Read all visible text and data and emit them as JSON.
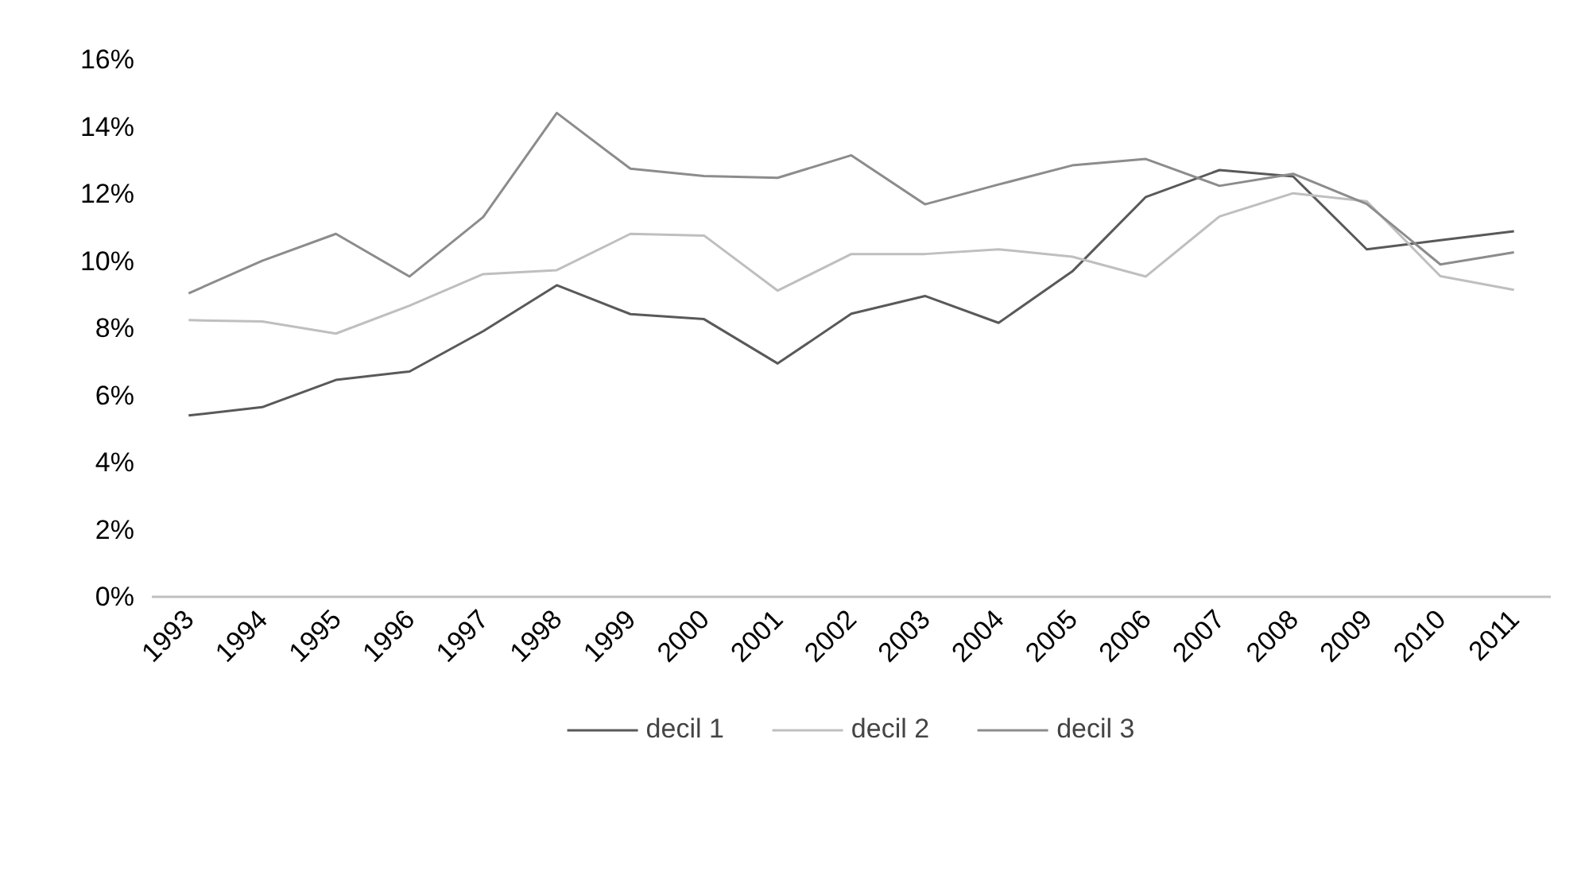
{
  "chart_data": {
    "type": "line",
    "categories": [
      "1993",
      "1994",
      "1995",
      "1996",
      "1997",
      "1998",
      "1999",
      "2000",
      "2001",
      "2002",
      "2003",
      "2004",
      "2005",
      "2006",
      "2007",
      "2008",
      "2009",
      "2010",
      "2011"
    ],
    "series": [
      {
        "name": "decil 1",
        "color": "#595959",
        "values": [
          5.4,
          5.65,
          6.46,
          6.71,
          7.91,
          9.28,
          8.42,
          8.27,
          6.95,
          8.43,
          8.96,
          8.16,
          9.69,
          11.91,
          12.71,
          12.52,
          10.35,
          10.62,
          10.89
        ]
      },
      {
        "name": "decil 2",
        "color": "#bfbfbf",
        "values": [
          8.24,
          8.2,
          7.84,
          8.67,
          9.61,
          9.73,
          10.81,
          10.76,
          9.12,
          10.21,
          10.21,
          10.35,
          10.13,
          9.54,
          11.33,
          12.02,
          11.78,
          9.55,
          9.14
        ]
      },
      {
        "name": "decil 3",
        "color": "#8c8c8c",
        "values": [
          9.04,
          10.01,
          10.81,
          9.54,
          11.31,
          14.41,
          12.75,
          12.53,
          12.48,
          13.15,
          11.69,
          12.28,
          12.85,
          13.04,
          12.24,
          12.6,
          11.7,
          9.9,
          10.26
        ]
      }
    ],
    "ylim": [
      0,
      16
    ],
    "yticks": [
      {
        "value": 0,
        "label": "0%"
      },
      {
        "value": 2,
        "label": "2%"
      },
      {
        "value": 4,
        "label": "4%"
      },
      {
        "value": 6,
        "label": "6%"
      },
      {
        "value": 8,
        "label": "8%"
      },
      {
        "value": 10,
        "label": "10%"
      },
      {
        "value": 12,
        "label": "12%"
      },
      {
        "value": 14,
        "label": "14%"
      },
      {
        "value": 16,
        "label": "16%"
      }
    ],
    "grid": false,
    "legend": "bottom",
    "marker": "none",
    "line_style": "solid"
  }
}
